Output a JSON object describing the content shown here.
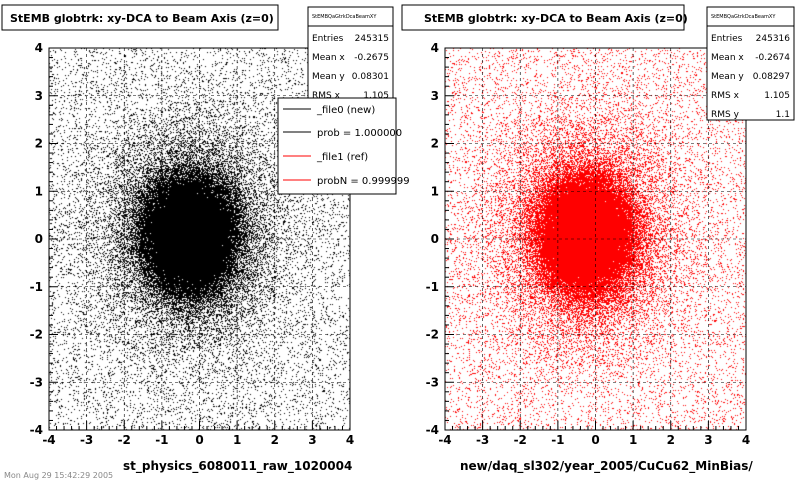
{
  "footer": "Mon Aug 29 15:42:29 2005",
  "chart_data": [
    {
      "type": "scatter",
      "title": "StEMB globtrk: xy-DCA to Beam Axis (z=0)",
      "xlabel": "st_physics_6080011_raw_1020004",
      "ylabel": "",
      "xlim": [
        -4,
        4
      ],
      "ylim": [
        -4,
        4
      ],
      "xticks": [
        "-4",
        "-3",
        "-2",
        "-1",
        "0",
        "1",
        "2",
        "3",
        "4"
      ],
      "yticks": [
        "-4",
        "-3",
        "-2",
        "-1",
        "0",
        "1",
        "2",
        "3",
        "4"
      ],
      "grid": true,
      "color": "#000000",
      "distribution": {
        "mean_x": -0.2675,
        "mean_y": 0.08301,
        "rms_x": 1.105
      },
      "stats": {
        "name": "StEMBQaGtrkDcaBeamXY",
        "rows": [
          {
            "label": "Entries",
            "value": "245315"
          },
          {
            "label": "Mean x",
            "value": "-0.2675"
          },
          {
            "label": "Mean y",
            "value": "0.08301"
          },
          {
            "label": "RMS x",
            "value": "1.105"
          }
        ]
      },
      "legend": {
        "position": "top-right",
        "entries": [
          {
            "label": "_file0 (new)",
            "color": "#000000"
          },
          {
            "label": "prob = 1.000000",
            "color": "#000000"
          },
          {
            "label": "_file1 (ref)",
            "color": "#ff0000"
          },
          {
            "label": "probN = 0.999999",
            "color": "#ff0000"
          }
        ]
      }
    },
    {
      "type": "scatter",
      "title": "StEMB globtrk: xy-DCA to Beam Axis (z=0)",
      "xlabel": "new/daq_sl302/year_2005/CuCu62_MinBias/",
      "ylabel": "",
      "xlim": [
        -4,
        4
      ],
      "ylim": [
        -4,
        4
      ],
      "xticks": [
        "-4",
        "-3",
        "-2",
        "-1",
        "0",
        "1",
        "2",
        "3",
        "4"
      ],
      "yticks": [
        "-4",
        "-3",
        "-2",
        "-1",
        "0",
        "1",
        "2",
        "3",
        "4"
      ],
      "grid": true,
      "color": "#ff0000",
      "distribution": {
        "mean_x": -0.2674,
        "mean_y": 0.08297,
        "rms_x": 1.105,
        "rms_y": 1.1
      },
      "stats": {
        "name": "StEMBQaGtrkDcaBeamXY",
        "rows": [
          {
            "label": "Entries",
            "value": "245316"
          },
          {
            "label": "Mean x",
            "value": "-0.2674"
          },
          {
            "label": "Mean y",
            "value": "0.08297"
          },
          {
            "label": "RMS x",
            "value": "1.105"
          },
          {
            "label": "RMS y",
            "value": "1.1"
          }
        ]
      }
    }
  ]
}
